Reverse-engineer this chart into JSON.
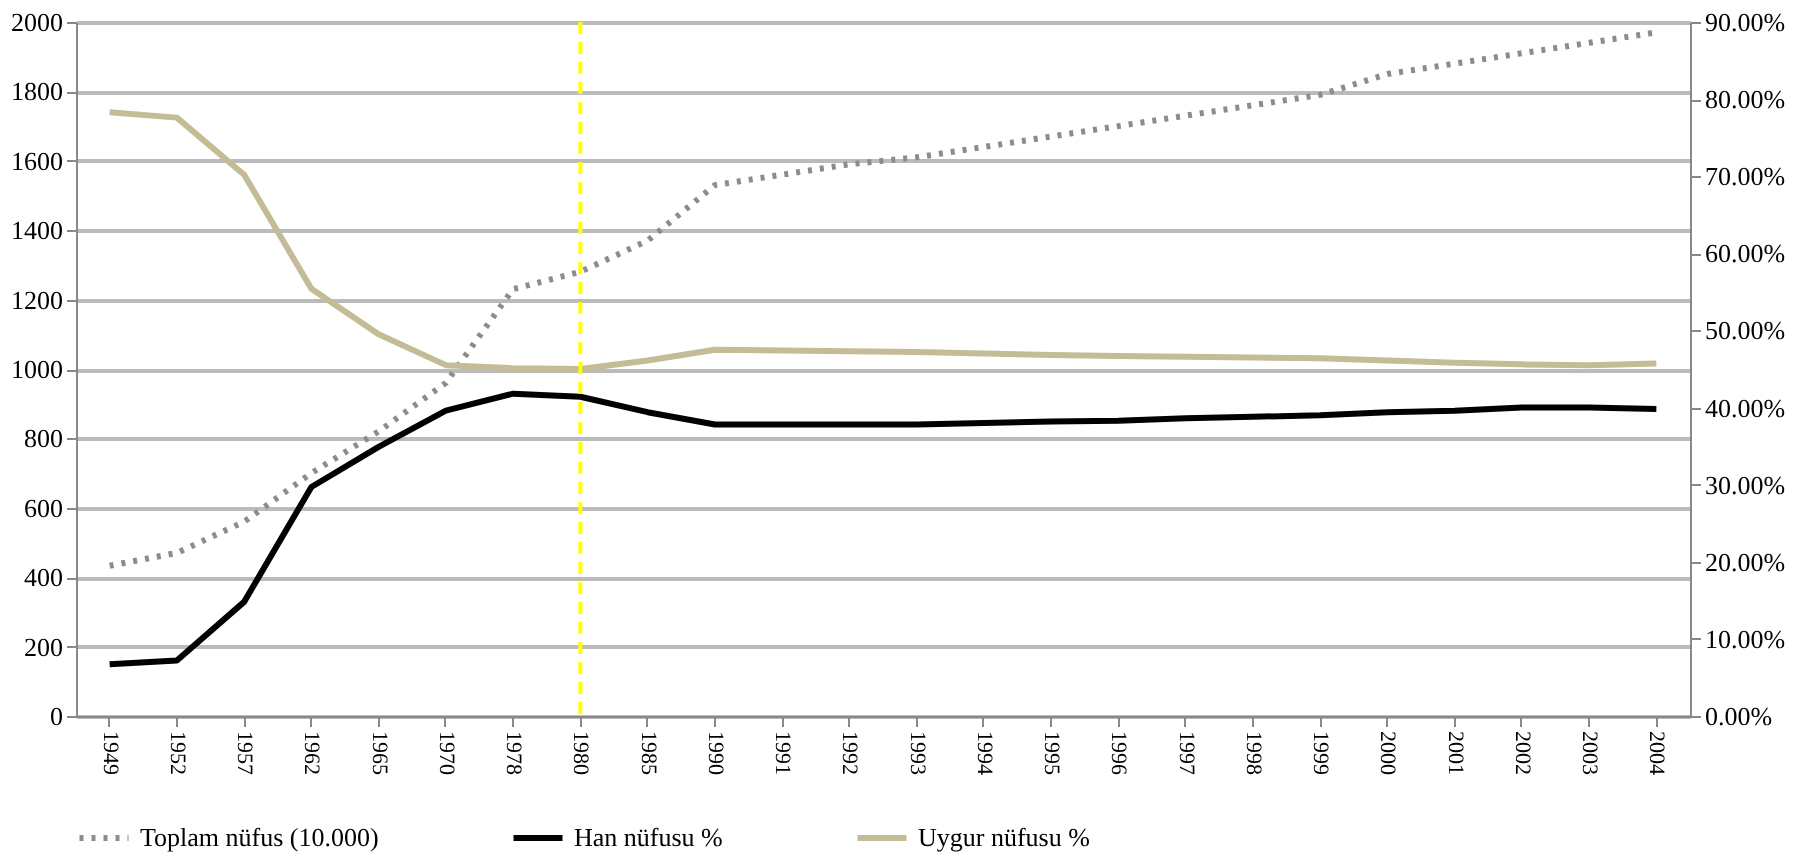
{
  "chart_data": {
    "type": "line",
    "categories": [
      "1949",
      "1952",
      "1957",
      "1962",
      "1965",
      "1970",
      "1978",
      "1980",
      "1985",
      "1990",
      "1991",
      "1992",
      "1993",
      "1994",
      "1995",
      "1996",
      "1997",
      "1998",
      "1999",
      "2000",
      "2001",
      "2002",
      "2003",
      "2004"
    ],
    "series": [
      {
        "name": "Toplam nüfus (10.000)",
        "color": "#8c8c8c",
        "line_style": "dotted",
        "values": [
          433,
          470,
          560,
          700,
          820,
          960,
          1230,
          1280,
          1370,
          1530,
          1560,
          1590,
          1610,
          1640,
          1670,
          1700,
          1730,
          1760,
          1790,
          1850,
          1880,
          1910,
          1940,
          1970
        ]
      },
      {
        "name": "Han nüfusu %",
        "color": "#000000",
        "line_style": "solid",
        "axis": "y2",
        "values": [
          6.7,
          7.2,
          14.8,
          29.7,
          34.9,
          39.6,
          41.8,
          41.4,
          39.4,
          37.8,
          37.8,
          37.8,
          37.8,
          38.0,
          38.2,
          38.3,
          38.6,
          38.8,
          39.0,
          39.4,
          39.6,
          40.0,
          40.0,
          39.8
        ]
      },
      {
        "name": "Uygur nüfusu %",
        "color": "#c4bc96",
        "line_style": "solid",
        "axis": "y2",
        "values": [
          78.3,
          77.6,
          70.2,
          55.4,
          49.5,
          45.5,
          45.1,
          45.0,
          46.1,
          47.5,
          47.4,
          47.3,
          47.2,
          47.0,
          46.8,
          46.7,
          46.6,
          46.5,
          46.4,
          46.1,
          45.8,
          45.6,
          45.5,
          45.7
        ]
      }
    ],
    "ylim": [
      0,
      2000
    ],
    "yticks": [
      0,
      200,
      400,
      600,
      800,
      1000,
      1200,
      1400,
      1600,
      1800,
      2000
    ],
    "y2lim": [
      0,
      90
    ],
    "y2ticks": [
      {
        "value": 0,
        "label": "0.00%"
      },
      {
        "value": 10,
        "label": "10.00%"
      },
      {
        "value": 20,
        "label": "20.00%"
      },
      {
        "value": 30,
        "label": "30.00%"
      },
      {
        "value": 40,
        "label": "40.00%"
      },
      {
        "value": 50,
        "label": "50.00%"
      },
      {
        "value": 60,
        "label": "60.00%"
      },
      {
        "value": 70,
        "label": "70.00%"
      },
      {
        "value": 80,
        "label": "80.00%"
      },
      {
        "value": 90,
        "label": "90.00%"
      }
    ],
    "ref_lines": [
      {
        "axis": "x",
        "value": "1980",
        "color": "#ffff00",
        "line_style": "dashed"
      }
    ],
    "grid": "y",
    "legend": "bottom"
  }
}
